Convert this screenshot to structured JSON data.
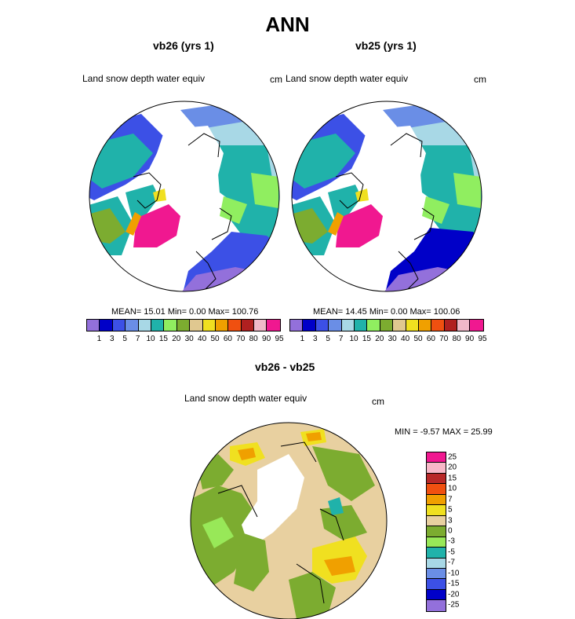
{
  "title": "ANN",
  "panels": [
    {
      "subtitle": "vb26 (yrs 1)",
      "variable": "Land snow depth water equiv",
      "units": "cm",
      "stats": "MEAN=  15.01  Min=    0.00  Max= 100.76"
    },
    {
      "subtitle": "vb25 (yrs 1)",
      "variable": "Land snow depth water equiv",
      "units": "cm",
      "stats": "MEAN=  14.45  Min=    0.00  Max= 100.06"
    }
  ],
  "diff_panel": {
    "subtitle": "vb26 - vb25",
    "variable": "Land snow depth water equiv",
    "units": "cm",
    "stats": "MIN =  -9.57 MAX =  25.99"
  },
  "colorbar_main": {
    "colors": [
      "#9370db",
      "#0000c8",
      "#3c50e6",
      "#6a8ee6",
      "#a8d8e6",
      "#20b2aa",
      "#90ee60",
      "#7cac30",
      "#e0c890",
      "#f0e020",
      "#f0a000",
      "#f05010",
      "#b02020",
      "#f0b8c8",
      "#f01890"
    ],
    "labels": [
      "1",
      "3",
      "5",
      "7",
      "10",
      "15",
      "20",
      "30",
      "40",
      "50",
      "60",
      "70",
      "80",
      "90",
      "95"
    ]
  },
  "colorbar_diff": {
    "colors": [
      "#f01890",
      "#f8b8c8",
      "#b82828",
      "#f05010",
      "#f0a000",
      "#f0e020",
      "#e8d0a0",
      "#7cac30",
      "#98e858",
      "#20b2aa",
      "#a8d8e6",
      "#6a8ee6",
      "#3c50e6",
      "#0000c8",
      "#9370db"
    ],
    "labels": [
      "25",
      "20",
      "15",
      "10",
      "7",
      "5",
      "3",
      "0",
      "-3",
      "-5",
      "-7",
      "-10",
      "-15",
      "-20",
      "-25"
    ]
  }
}
